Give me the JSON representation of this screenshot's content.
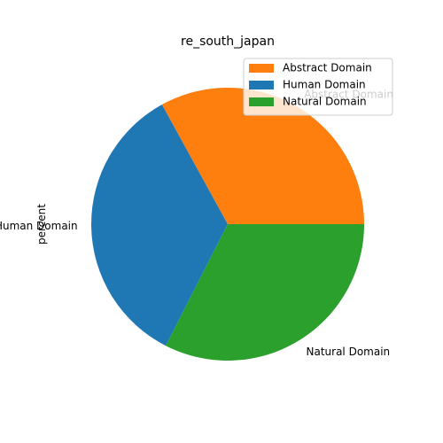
{
  "chart_data": {
    "type": "pie",
    "title": "re_south_japan",
    "ylabel": "percent",
    "categories": [
      "Abstract Domain",
      "Human Domain",
      "Natural Domain"
    ],
    "values": [
      33.0,
      34.5,
      32.5
    ],
    "colors": [
      "#ff7f0e",
      "#1f77b4",
      "#2ca02c"
    ],
    "start_angle_deg": 0,
    "direction": "counterclockwise",
    "legend": {
      "location": "top-right",
      "entries": [
        "Abstract Domain",
        "Human Domain",
        "Natural Domain"
      ]
    }
  }
}
